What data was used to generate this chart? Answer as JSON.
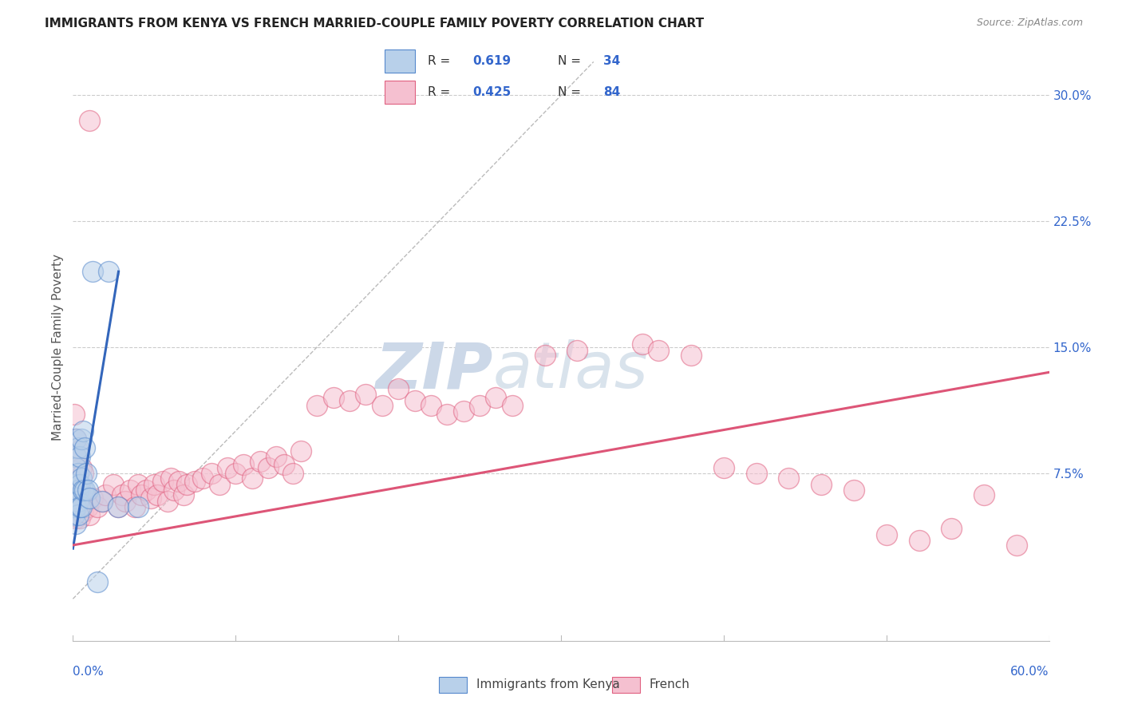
{
  "title": "IMMIGRANTS FROM KENYA VS FRENCH MARRIED-COUPLE FAMILY POVERTY CORRELATION CHART",
  "source": "Source: ZipAtlas.com",
  "ylabel": "Married-Couple Family Poverty",
  "x_min": 0.0,
  "x_max": 0.6,
  "y_min": -0.025,
  "y_max": 0.325,
  "yticks": [
    0.075,
    0.15,
    0.225,
    0.3
  ],
  "ytick_labels": [
    "7.5%",
    "15.0%",
    "22.5%",
    "30.0%"
  ],
  "blue_scatter_x": [
    0.001,
    0.001,
    0.001,
    0.002,
    0.002,
    0.002,
    0.002,
    0.002,
    0.002,
    0.002,
    0.003,
    0.003,
    0.003,
    0.003,
    0.003,
    0.004,
    0.004,
    0.004,
    0.005,
    0.005,
    0.005,
    0.006,
    0.006,
    0.007,
    0.007,
    0.008,
    0.009,
    0.01,
    0.012,
    0.015,
    0.018,
    0.022,
    0.028,
    0.04
  ],
  "blue_scatter_y": [
    0.06,
    0.055,
    0.05,
    0.095,
    0.085,
    0.078,
    0.068,
    0.06,
    0.055,
    0.045,
    0.09,
    0.075,
    0.065,
    0.058,
    0.05,
    0.085,
    0.068,
    0.055,
    0.095,
    0.072,
    0.055,
    0.1,
    0.065,
    0.09,
    0.065,
    0.075,
    0.065,
    0.06,
    0.195,
    0.01,
    0.058,
    0.195,
    0.055,
    0.055
  ],
  "pink_scatter_x": [
    0.001,
    0.001,
    0.002,
    0.002,
    0.002,
    0.002,
    0.003,
    0.003,
    0.004,
    0.004,
    0.005,
    0.005,
    0.006,
    0.006,
    0.007,
    0.008,
    0.009,
    0.01,
    0.012,
    0.015,
    0.018,
    0.02,
    0.025,
    0.028,
    0.03,
    0.032,
    0.035,
    0.038,
    0.04,
    0.042,
    0.045,
    0.048,
    0.05,
    0.052,
    0.055,
    0.058,
    0.06,
    0.062,
    0.065,
    0.068,
    0.07,
    0.075,
    0.08,
    0.085,
    0.09,
    0.095,
    0.1,
    0.105,
    0.11,
    0.115,
    0.12,
    0.125,
    0.13,
    0.135,
    0.14,
    0.15,
    0.16,
    0.17,
    0.18,
    0.19,
    0.2,
    0.21,
    0.22,
    0.23,
    0.24,
    0.25,
    0.26,
    0.27,
    0.29,
    0.31,
    0.35,
    0.36,
    0.38,
    0.4,
    0.42,
    0.44,
    0.46,
    0.48,
    0.5,
    0.52,
    0.54,
    0.56,
    0.58,
    0.01
  ],
  "pink_scatter_y": [
    0.11,
    0.07,
    0.095,
    0.085,
    0.055,
    0.048,
    0.088,
    0.062,
    0.065,
    0.048,
    0.078,
    0.052,
    0.075,
    0.052,
    0.058,
    0.06,
    0.055,
    0.05,
    0.06,
    0.055,
    0.058,
    0.062,
    0.068,
    0.055,
    0.062,
    0.058,
    0.065,
    0.055,
    0.068,
    0.062,
    0.065,
    0.06,
    0.068,
    0.062,
    0.07,
    0.058,
    0.072,
    0.065,
    0.07,
    0.062,
    0.068,
    0.07,
    0.072,
    0.075,
    0.068,
    0.078,
    0.075,
    0.08,
    0.072,
    0.082,
    0.078,
    0.085,
    0.08,
    0.075,
    0.088,
    0.115,
    0.12,
    0.118,
    0.122,
    0.115,
    0.125,
    0.118,
    0.115,
    0.11,
    0.112,
    0.115,
    0.12,
    0.115,
    0.145,
    0.148,
    0.152,
    0.148,
    0.145,
    0.078,
    0.075,
    0.072,
    0.068,
    0.065,
    0.038,
    0.035,
    0.042,
    0.062,
    0.032,
    0.285
  ],
  "blue_line_x": [
    0.0,
    0.028
  ],
  "blue_line_y": [
    0.03,
    0.195
  ],
  "pink_line_x": [
    0.0,
    0.6
  ],
  "pink_line_y": [
    0.032,
    0.135
  ],
  "ref_line_x": [
    0.0,
    0.32
  ],
  "ref_line_y": [
    0.0,
    0.32
  ],
  "scatter_size": 350,
  "scatter_alpha": 0.55,
  "scatter_lw": 1.0,
  "blue_face": "#b8d0ea",
  "blue_edge": "#5588cc",
  "pink_face": "#f5c0d0",
  "pink_edge": "#e06080",
  "blue_line_color": "#3366bb",
  "pink_line_color": "#dd5577",
  "ref_line_color": "#aaaaaa",
  "grid_color": "#cccccc",
  "grid_style": "--",
  "background_color": "#ffffff",
  "watermark_zip": "ZIP",
  "watermark_atlas": "atlas",
  "watermark_color": "#ccd8e8",
  "legend_R1": "0.619",
  "legend_N1": "34",
  "legend_R2": "0.425",
  "legend_N2": "84",
  "label_color": "#3366cc",
  "axis_text_color": "#555555",
  "title_color": "#222222",
  "source_color": "#888888"
}
